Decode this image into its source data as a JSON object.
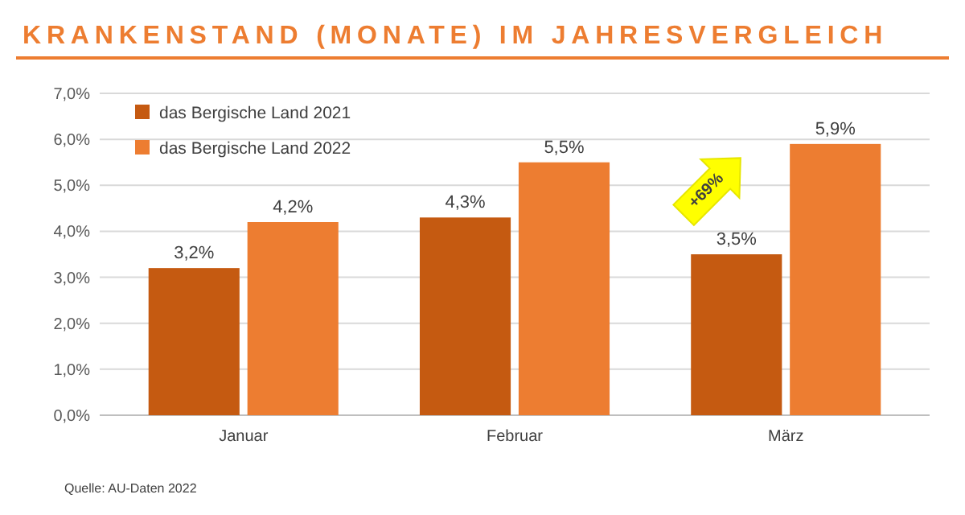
{
  "chart_data": {
    "type": "bar",
    "title": "KRANKENSTAND (MONATE) IM JAHRESVERGLEICH",
    "categories": [
      "Januar",
      "Februar",
      "März"
    ],
    "series": [
      {
        "name": "das Bergische Land 2021",
        "color": "#c55a11",
        "values": [
          3.2,
          4.3,
          3.5
        ],
        "value_labels": [
          "3,2%",
          "4,3%",
          "3,5%"
        ]
      },
      {
        "name": "das Bergische Land 2022",
        "color": "#ed7d31",
        "values": [
          4.2,
          5.5,
          5.9
        ],
        "value_labels": [
          "4,2%",
          "5,5%",
          "5,9%"
        ]
      }
    ],
    "ylim": [
      0,
      7
    ],
    "yticks": [
      {
        "value": 0,
        "label": "0,0%"
      },
      {
        "value": 1,
        "label": "1,0%"
      },
      {
        "value": 2,
        "label": "2,0%"
      },
      {
        "value": 3,
        "label": "3,0%"
      },
      {
        "value": 4,
        "label": "4,0%"
      },
      {
        "value": 5,
        "label": "5,0%"
      },
      {
        "value": 6,
        "label": "6,0%"
      },
      {
        "value": 7,
        "label": "7,0%"
      }
    ],
    "grid": "y",
    "legend": "top left",
    "annotations": [
      "+69%",
      "Quelle: AU-Daten 2022"
    ]
  }
}
